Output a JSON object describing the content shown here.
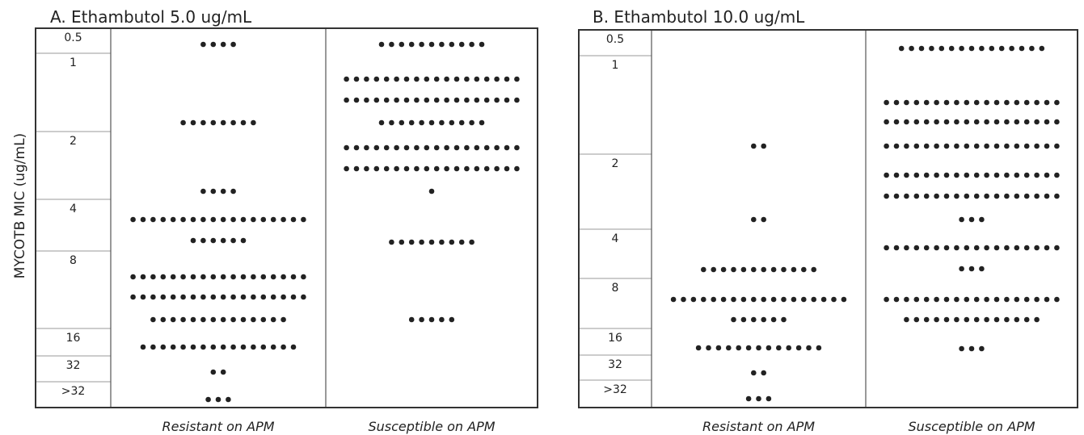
{
  "y_axis_label": "MYCOTB MIC (ug/mL)",
  "chart_data": [
    {
      "type": "scatter",
      "subtype": "dot-strip",
      "title": "A.  Ethambutol 5.0 ug/mL",
      "categories": [
        "Resistant on APM",
        "Susceptible on APM"
      ],
      "mic_levels": [
        "0.5",
        "1",
        "2",
        "4",
        "8",
        "16",
        "32",
        ">32"
      ],
      "series": [
        {
          "category": "Resistant on APM",
          "rows": [
            {
              "mic": "0.5",
              "count": 4
            },
            {
              "mic": "1",
              "count": 8
            },
            {
              "mic": "2",
              "count": 4
            },
            {
              "mic": "4",
              "count": 18
            },
            {
              "mic": "4",
              "count": 6
            },
            {
              "mic": "8",
              "count": 18
            },
            {
              "mic": "8",
              "count": 18
            },
            {
              "mic": "8",
              "count": 14
            },
            {
              "mic": "16",
              "count": 16
            },
            {
              "mic": "32",
              "count": 2
            },
            {
              "mic": ">32",
              "count": 3
            }
          ]
        },
        {
          "category": "Susceptible on APM",
          "rows": [
            {
              "mic": "0.5",
              "count": 11
            },
            {
              "mic": "1",
              "count": 18
            },
            {
              "mic": "1",
              "count": 18
            },
            {
              "mic": "1",
              "count": 11
            },
            {
              "mic": "2",
              "count": 18
            },
            {
              "mic": "2",
              "count": 18
            },
            {
              "mic": "2",
              "count": 1
            },
            {
              "mic": "4",
              "count": 9
            },
            {
              "mic": "8",
              "count": 5
            }
          ]
        }
      ]
    },
    {
      "type": "scatter",
      "subtype": "dot-strip",
      "title": "B.  Ethambutol 10.0 ug/mL",
      "categories": [
        "Resistant on APM",
        "Susceptible on APM"
      ],
      "mic_levels": [
        "0.5",
        "1",
        "2",
        "4",
        "8",
        "16",
        "32",
        ">32"
      ],
      "series": [
        {
          "category": "Resistant on APM",
          "rows": [
            {
              "mic": "1",
              "count": 2
            },
            {
              "mic": "2",
              "count": 2
            },
            {
              "mic": "4",
              "count": 12
            },
            {
              "mic": "8",
              "count": 18
            },
            {
              "mic": "8",
              "count": 6
            },
            {
              "mic": "16",
              "count": 13
            },
            {
              "mic": "32",
              "count": 2
            },
            {
              "mic": ">32",
              "count": 3
            }
          ]
        },
        {
          "category": "Susceptible on APM",
          "rows": [
            {
              "mic": "0.5",
              "count": 15
            },
            {
              "mic": "1",
              "count": 18
            },
            {
              "mic": "1",
              "count": 18
            },
            {
              "mic": "1",
              "count": 18
            },
            {
              "mic": "2",
              "count": 18
            },
            {
              "mic": "2",
              "count": 18
            },
            {
              "mic": "2",
              "count": 3
            },
            {
              "mic": "4",
              "count": 18
            },
            {
              "mic": "4",
              "count": 3
            },
            {
              "mic": "8",
              "count": 18
            },
            {
              "mic": "8",
              "count": 14
            },
            {
              "mic": "16",
              "count": 3
            }
          ]
        }
      ]
    }
  ]
}
